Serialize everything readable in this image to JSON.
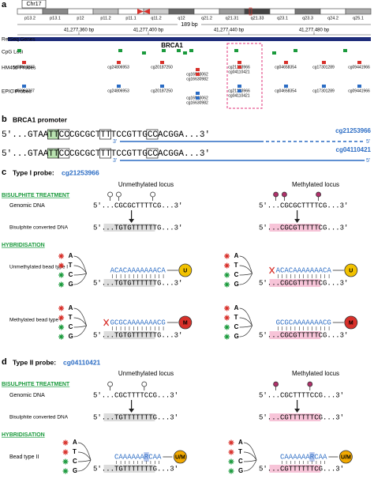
{
  "panel_a": {
    "label": "a",
    "chromosome": "Chr17",
    "bands": [
      "p13.2",
      "p13.1",
      "p12",
      "p11.2",
      "p11.1",
      "q11.2",
      "q12",
      "q21.2",
      "q21.31",
      "q21.33",
      "q23.1",
      "q23.3",
      "q24.2",
      "q25.1"
    ],
    "scale": "189 bp",
    "positions": [
      "41,277,360 bp",
      "41,277,400 bp",
      "41,277,440 bp",
      "41,277,480 bp"
    ],
    "tracks": [
      "RefSeq Genes",
      "CpG Loci",
      "HM450 Probes",
      "EPIC Probes"
    ],
    "gene": "BRCA1",
    "hm450_probes": [
      "cg08993287",
      "cg24806953",
      "cg20187250",
      "cg16963062",
      "cg16630982",
      "cg21253966",
      "cg04110421",
      "cg04658354",
      "cg17301289",
      "cg09441966"
    ],
    "epic_probes": [
      "cg08993287",
      "cg24806953",
      "cg20187250",
      "cg16963062",
      "cg16630982",
      "cg21253966",
      "cg04110421",
      "cg04658354",
      "cg17301289",
      "cg09441966"
    ]
  },
  "panel_b": {
    "label": "b",
    "title": "BRCA1 promoter",
    "strands": [
      {
        "sequence": "5'...GTAATTCCCGCGCTTTTCCGTTGCCACGGA...3'",
        "probe": "cg21253966",
        "probe_ends": [
          "3'",
          "5'"
        ]
      },
      {
        "sequence": "5'...GTAATTCCCGCGCTTTTCCGTTGCCACGGA...3'",
        "probe": "cg04110421",
        "probe_ends": [
          "3'",
          "5'"
        ]
      }
    ]
  },
  "panel_c": {
    "label": "c",
    "title": "Type I probe:",
    "probe": "cg21253966",
    "sections": [
      "BISULPHITE TREATMENT",
      "HYBRIDISATION"
    ],
    "columns": [
      "Unmethylated locus",
      "Methylated locus"
    ],
    "rows": [
      "Genomic DNA",
      "Bisulphite converted DNA",
      "Unmethylated bead type I",
      "Methylated bead type I"
    ],
    "nucleotides": [
      "A",
      "T",
      "C",
      "G"
    ],
    "unmethylated": {
      "genomic": "5'...CGCGCTTTTCG...3'",
      "converted": "5'...TGTGTTTTTTG...3'"
    },
    "methylated": {
      "genomic": "5'...CGCGCTTTTCG...3'",
      "converted": "5'...CGCGTTTTTCG...3'"
    },
    "probes": [
      "ACACAAAAAAACA",
      "GCGCAAAAAAACG"
    ],
    "beads": [
      "U",
      "M"
    ]
  },
  "panel_d": {
    "label": "d",
    "title": "Type II probe:",
    "probe": "cg04110421",
    "sections": [
      "BISULPHITE TREATMENT",
      "HYBRIDISATION"
    ],
    "columns": [
      "Unmethylated locus",
      "Methylated locus"
    ],
    "rows": [
      "Genomic DNA",
      "Bisulphite converted DNA",
      "Bead type II"
    ],
    "nucleotides": [
      "A",
      "T",
      "C",
      "G"
    ],
    "unmethylated": {
      "genomic": "5'...CGCTTTTCCG...3'",
      "converted": "5'...TGTTTTTTTG...3'"
    },
    "methylated": {
      "genomic": "5'...CGCTTTTCCG...3'",
      "converted": "5'...CGTTTTTTCG...3'"
    },
    "probe_sequence": "CAAAAAARCAA",
    "bead": "U/M"
  }
}
